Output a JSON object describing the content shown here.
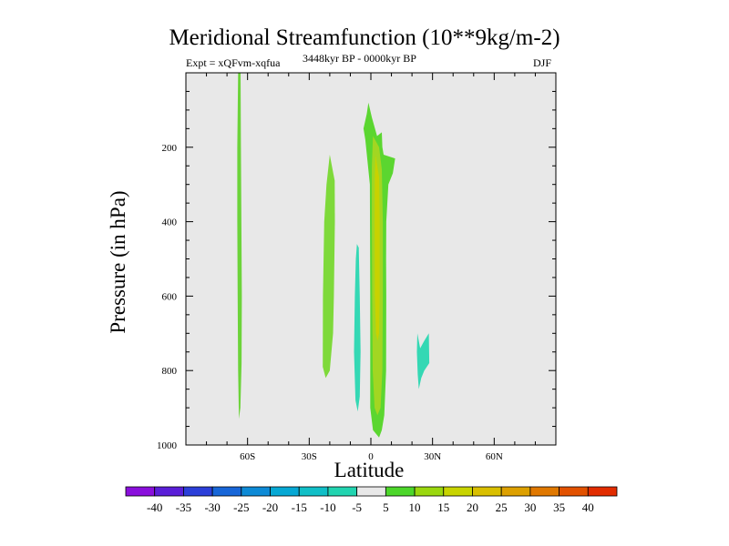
{
  "chart_data": {
    "type": "contour",
    "title": "Meridional Streamfunction (10**9kg/m-2)",
    "subtitle_left": "Expt = xQFvm-xqfua",
    "subtitle_center": "3448kyr BP - 0000kyr BP",
    "subtitle_right": "DJF",
    "xlabel": "Latitude",
    "ylabel": "Pressure (in hPa)",
    "xlim": [
      -90,
      90
    ],
    "ylim": [
      1000,
      0
    ],
    "x_ticks": [
      {
        "value": -60,
        "label": "60S"
      },
      {
        "value": -30,
        "label": "30S"
      },
      {
        "value": 0,
        "label": "0"
      },
      {
        "value": 30,
        "label": "30N"
      },
      {
        "value": 60,
        "label": "60N"
      }
    ],
    "y_ticks": [
      {
        "value": 200,
        "label": "200"
      },
      {
        "value": 400,
        "label": "400"
      },
      {
        "value": 600,
        "label": "600"
      },
      {
        "value": 800,
        "label": "800"
      },
      {
        "value": 1000,
        "label": "1000"
      }
    ],
    "y_minor_step": 50,
    "x_minor_step": 10,
    "background_color": "#e8e8e8",
    "colorbar": {
      "labels": [
        "-40",
        "-35",
        "-30",
        "-25",
        "-20",
        "-15",
        "-10",
        "-5",
        "5",
        "10",
        "15",
        "20",
        "25",
        "30",
        "35",
        "40"
      ],
      "colors": [
        "#8a0fdc",
        "#5a1ed8",
        "#2b3fd9",
        "#1766d8",
        "#0d8ad6",
        "#06a8d4",
        "#10bfc7",
        "#21d4b0",
        "#e8e8e8",
        "#4cd62a",
        "#9ad70e",
        "#c8d400",
        "#d9bf00",
        "#dda000",
        "#e07800",
        "#e25100",
        "#e22c00"
      ]
    },
    "regions": [
      {
        "name": "60s-column",
        "level": "5 to 10",
        "color": "#6cd33a",
        "points": [
          [
            -64.6,
            0
          ],
          [
            -63.4,
            0
          ],
          [
            -63.2,
            200
          ],
          [
            -63.0,
            400
          ],
          [
            -62.8,
            600
          ],
          [
            -62.9,
            780
          ],
          [
            -63.5,
            900
          ],
          [
            -64.2,
            930
          ],
          [
            -64.6,
            800
          ],
          [
            -64.8,
            600
          ],
          [
            -65.0,
            400
          ],
          [
            -65.0,
            200
          ]
        ]
      },
      {
        "name": "30s-column",
        "level": "5 to 10",
        "color": "#7ed93a",
        "points": [
          [
            -20,
            220
          ],
          [
            -17.6,
            290
          ],
          [
            -17.5,
            400
          ],
          [
            -18,
            600
          ],
          [
            -18.4,
            700
          ],
          [
            -20,
            800
          ],
          [
            -22,
            820
          ],
          [
            -23.4,
            790
          ],
          [
            -23.3,
            600
          ],
          [
            -22.7,
            400
          ],
          [
            -21.6,
            300
          ]
        ]
      },
      {
        "name": "10s-column",
        "level": "-10 to -5",
        "color": "#34d8b4",
        "points": [
          [
            -6.8,
            460
          ],
          [
            -5.9,
            470
          ],
          [
            -5.4,
            600
          ],
          [
            -5.0,
            750
          ],
          [
            -5.4,
            870
          ],
          [
            -6.4,
            910
          ],
          [
            -7.5,
            880
          ],
          [
            -8.2,
            750
          ],
          [
            -7.8,
            600
          ],
          [
            -7.3,
            500
          ]
        ]
      },
      {
        "name": "equator-column",
        "level": "5 to 10",
        "color": "#5bd630",
        "points": [
          [
            -1.2,
            80
          ],
          [
            0.5,
            120
          ],
          [
            3.0,
            170
          ],
          [
            5.3,
            160
          ],
          [
            5.6,
            200
          ],
          [
            6.2,
            220
          ],
          [
            11.8,
            230
          ],
          [
            10.7,
            270
          ],
          [
            8.5,
            300
          ],
          [
            7.5,
            400
          ],
          [
            7.4,
            500
          ],
          [
            7.5,
            600
          ],
          [
            7.4,
            800
          ],
          [
            6.5,
            920
          ],
          [
            5.3,
            960
          ],
          [
            4.0,
            980
          ],
          [
            1.0,
            960
          ],
          [
            -0.3,
            900
          ],
          [
            -0.3,
            600
          ],
          [
            -0.5,
            300
          ],
          [
            -2.7,
            180
          ],
          [
            -3.6,
            150
          ],
          [
            -2.0,
            110
          ]
        ]
      },
      {
        "name": "equator-inner",
        "level": "10 to 15",
        "color": "#a2d622",
        "points": [
          [
            1.0,
            170
          ],
          [
            4.0,
            200
          ],
          [
            5.3,
            260
          ],
          [
            5.8,
            400
          ],
          [
            5.8,
            600
          ],
          [
            5.6,
            800
          ],
          [
            4.7,
            900
          ],
          [
            3.2,
            920
          ],
          [
            1.8,
            900
          ],
          [
            0.9,
            800
          ],
          [
            0.6,
            600
          ],
          [
            0.5,
            400
          ],
          [
            0.5,
            250
          ]
        ]
      },
      {
        "name": "equator-core",
        "level": "15 to 20",
        "color": "#c8d200",
        "points": [
          [
            2.2,
            220
          ],
          [
            4.0,
            280
          ],
          [
            4.3,
            400
          ],
          [
            4.3,
            600
          ],
          [
            4.0,
            700
          ],
          [
            3.3,
            720
          ],
          [
            2.5,
            700
          ],
          [
            1.9,
            600
          ],
          [
            1.8,
            400
          ],
          [
            1.9,
            280
          ]
        ]
      },
      {
        "name": "20n-cell",
        "level": "-10 to -5",
        "color": "#34d8b4",
        "points": [
          [
            22.6,
            700
          ],
          [
            24.0,
            740
          ],
          [
            26.0,
            720
          ],
          [
            28.2,
            700
          ],
          [
            28.4,
            780
          ],
          [
            26.0,
            800
          ],
          [
            24.5,
            820
          ],
          [
            23.3,
            850
          ],
          [
            22.8,
            810
          ],
          [
            22.4,
            750
          ]
        ]
      }
    ]
  }
}
